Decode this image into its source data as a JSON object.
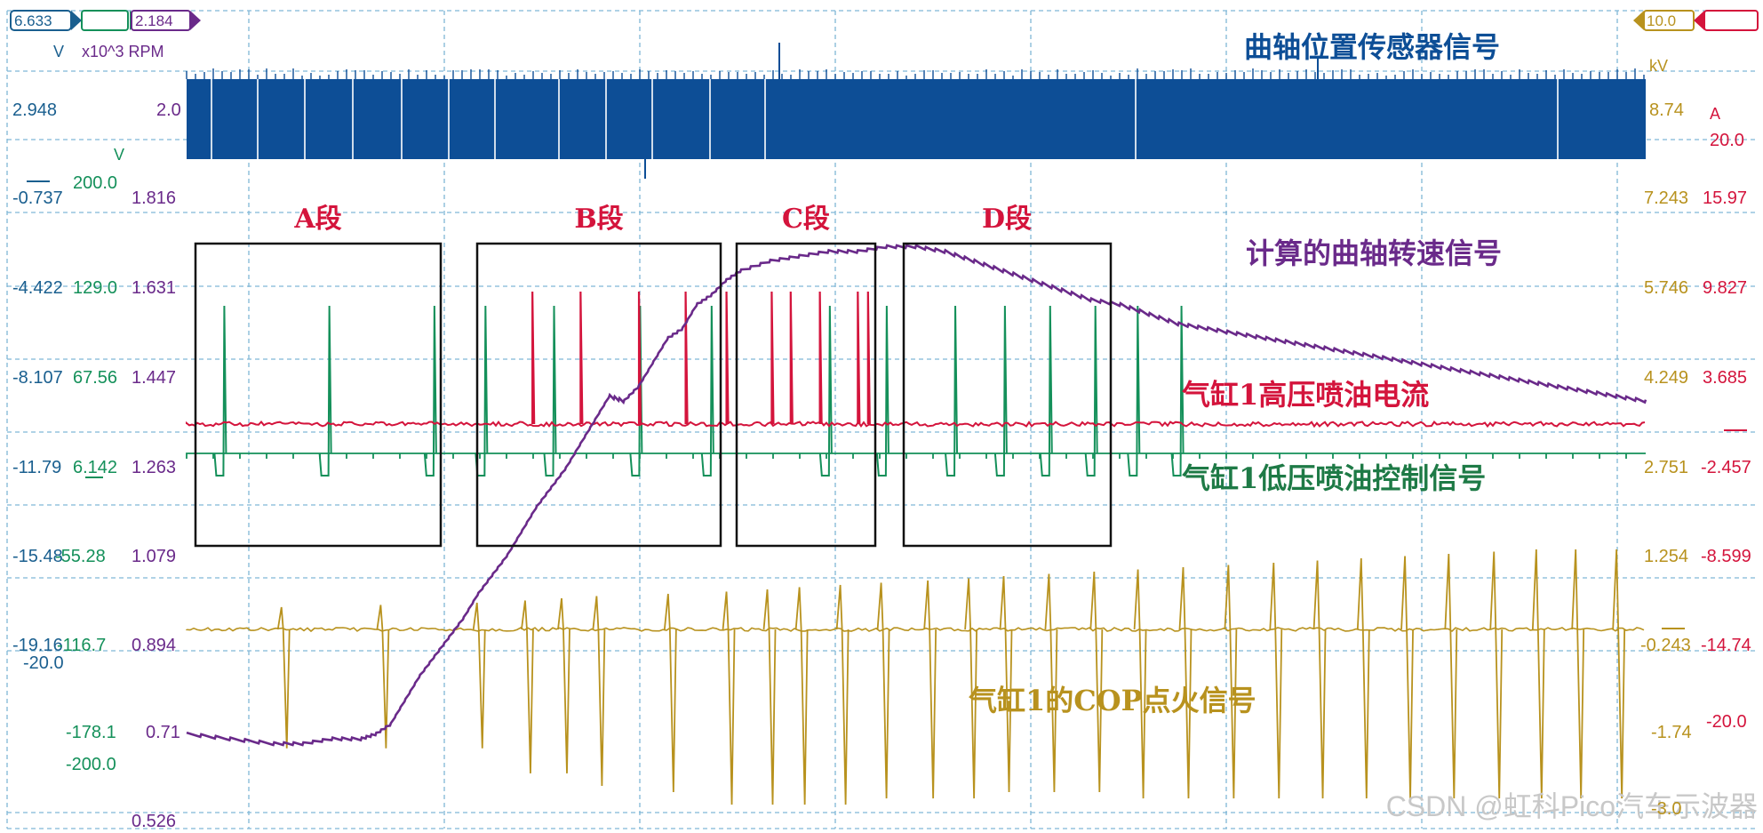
{
  "colors": {
    "crank": "#0d4e96",
    "rpm": "#6a2a8a",
    "current": "#d4143c",
    "lowside": "#14905a",
    "cop": "#b8921e",
    "box": "#111111",
    "grid": "#7fb7d6",
    "watermark": "#c8c8c8",
    "axis_v1": "#1a5f8f"
  },
  "top_tags": {
    "left_a": "6.633",
    "left_b": "2.184",
    "right_a": "10.0"
  },
  "unit_labels": {
    "v_left": "V",
    "rpm": "x10^3 RPM",
    "v_green": "V",
    "kv": "kV",
    "amp": "A"
  },
  "axes": {
    "left_blue": [
      "2.948",
      "-0.737",
      "-4.422",
      "-8.107",
      "-11.79",
      "-15.48",
      "-19.16"
    ],
    "left_green": [
      "200.0",
      "129.0",
      "67.56",
      "6.142",
      "-55.28",
      "-116.7",
      "-178.1",
      "-200.0"
    ],
    "left_purple": [
      "2.0",
      "1.816",
      "1.631",
      "1.447",
      "1.263",
      "1.079",
      "0.894",
      "0.71",
      "0.526"
    ],
    "left_extra": [
      "-20.0"
    ],
    "right_gold": [
      "8.74",
      "7.243",
      "5.746",
      "4.249",
      "2.751",
      "1.254",
      "-0.243",
      "-1.74",
      "-3.0"
    ],
    "right_red": [
      "20.0",
      "15.97",
      "9.827",
      "3.685",
      "-2.457",
      "-8.599",
      "-14.74",
      "-20.0"
    ]
  },
  "trace_labels": {
    "crank": "曲轴位置传感器信号",
    "rpm": "计算的曲轴转速信号",
    "current": "气缸1高压喷油电流",
    "lowside": "气缸1低压喷油控制信号",
    "cop": "气缸1的COP点火信号"
  },
  "segments": [
    "A段",
    "B段",
    "C段",
    "D段"
  ],
  "watermark": "CSDN @虹科Pico汽车示波器",
  "chart_data": {
    "type": "line",
    "title": "",
    "xlabel": "",
    "ylabel": "",
    "grid": true,
    "series": [
      {
        "name": "计算的曲轴转速信号",
        "unit": "x10^3 RPM",
        "ylim": [
          0.526,
          2.0
        ],
        "x": [
          0,
          3,
          6,
          8,
          10,
          12,
          13,
          14,
          15,
          16,
          17,
          18,
          19,
          20,
          21,
          22,
          23,
          24,
          25,
          26,
          27,
          28,
          29,
          30,
          31,
          32,
          33,
          34,
          35,
          36,
          37,
          38,
          40,
          42,
          44,
          46,
          48,
          50,
          52,
          54,
          56,
          58,
          60,
          62,
          64,
          66,
          68,
          70,
          72,
          74,
          76,
          78,
          80,
          82,
          84,
          86,
          88,
          90,
          92,
          94,
          96,
          98,
          100
        ],
        "y": [
          0.71,
          0.7,
          0.69,
          0.69,
          0.7,
          0.7,
          0.71,
          0.73,
          0.78,
          0.83,
          0.87,
          0.91,
          0.95,
          1.0,
          1.04,
          1.08,
          1.13,
          1.18,
          1.22,
          1.26,
          1.31,
          1.36,
          1.41,
          1.4,
          1.43,
          1.48,
          1.53,
          1.55,
          1.6,
          1.62,
          1.65,
          1.67,
          1.69,
          1.7,
          1.71,
          1.71,
          1.72,
          1.72,
          1.71,
          1.69,
          1.67,
          1.65,
          1.63,
          1.61,
          1.6,
          1.58,
          1.56,
          1.55,
          1.54,
          1.53,
          1.52,
          1.51,
          1.5,
          1.49,
          1.48,
          1.47,
          1.46,
          1.45,
          1.44,
          1.43,
          1.42,
          1.41,
          1.4
        ]
      },
      {
        "name": "气缸1高压喷油电流",
        "unit": "A",
        "ylim": [
          -20.0,
          20.0
        ],
        "baseline": 0.0,
        "pulses_x": [
          23.7,
          27.0,
          31.0,
          34.2,
          37.0,
          40.1,
          41.4,
          43.4,
          46.0,
          46.7
        ],
        "pulses_peak": [
          9.8,
          9.8,
          9.8,
          9.8,
          9.8,
          9.8,
          9.8,
          9.8,
          9.8,
          9.8
        ]
      },
      {
        "name": "气缸1低压喷油控制信号",
        "unit": "V",
        "ylim": [
          -200.0,
          200.0
        ],
        "baseline": 0.0,
        "pulses_x": [
          2.4,
          9.6,
          16.8,
          20.3,
          25.0,
          30.9,
          35.8,
          43.9,
          47.8,
          52.5,
          55.9,
          59.0,
          62.1,
          65.0,
          68.0
        ],
        "pulses_peak": [
          125.0,
          125.0,
          125.0,
          125.0,
          125.0,
          125.0,
          125.0,
          125.0,
          125.0,
          125.0,
          125.0,
          125.0,
          125.0,
          125.0,
          125.0
        ]
      },
      {
        "name": "气缸1的COP点火信号",
        "unit": "kV",
        "ylim": [
          -3.0,
          10.0
        ],
        "baseline": 0.0,
        "pulses_x": [
          6.5,
          13.3,
          19.9,
          23.2,
          25.7,
          28.1,
          33.0,
          37.0,
          39.8,
          42.0,
          44.8,
          47.6,
          50.8,
          53.6,
          56.0,
          59.1,
          62.2,
          65.2,
          68.3,
          71.4,
          74.5,
          77.5,
          80.5,
          83.5,
          86.5,
          89.6,
          92.5,
          95.2,
          98.0
        ],
        "pulses_peak": [
          -1.9,
          -1.9,
          -1.9,
          -2.3,
          -2.3,
          -2.5,
          -2.6,
          -2.8,
          -2.8,
          -2.8,
          -2.8,
          -2.7,
          -2.7,
          -2.7,
          -2.6,
          -2.6,
          -2.6,
          -2.7,
          -2.7,
          -2.7,
          -2.7,
          -2.7,
          -2.7,
          -2.7,
          -2.7,
          -2.7,
          -2.7,
          -2.7,
          -2.7
        ]
      },
      {
        "name": "曲轴位置传感器信号",
        "unit": "V",
        "ylim": [
          -19.16,
          6.633
        ]
      }
    ]
  }
}
